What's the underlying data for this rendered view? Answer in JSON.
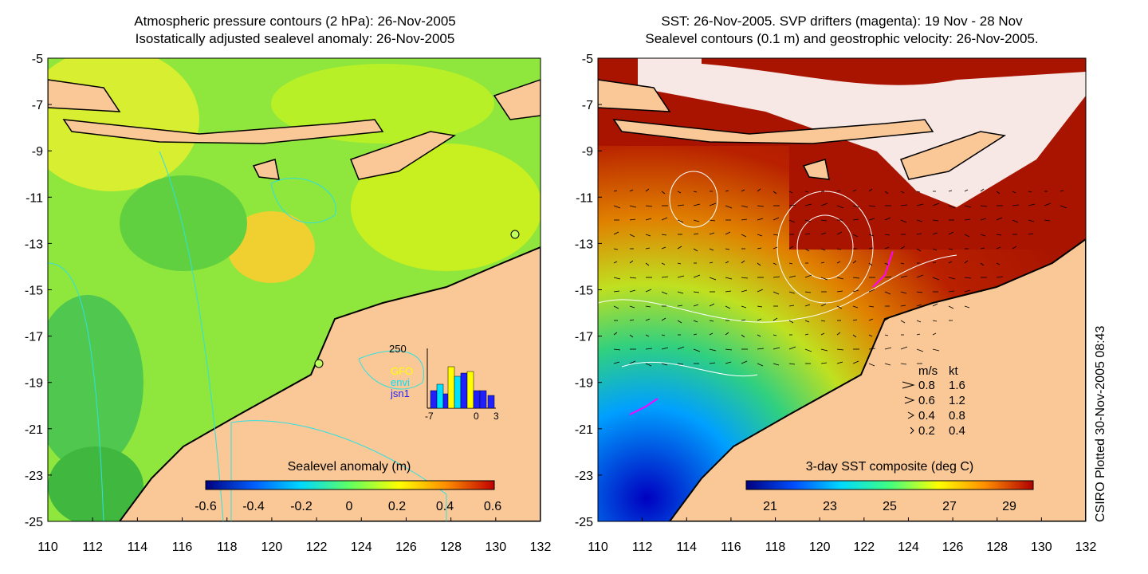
{
  "left_panel": {
    "title_line1": "Atmospheric pressure contours (2 hPa): 26-Nov-2005",
    "title_line2": "Isostatically adjusted sealevel anomaly: 26-Nov-2005",
    "colorbar_label": "Sealevel anomaly (m)",
    "colorbar_ticks": [
      "-0.6",
      "-0.4",
      "-0.2",
      "0",
      "0.2",
      "0.4",
      "0.6"
    ],
    "inset": {
      "y_label": "250",
      "legend": [
        {
          "label": "GFO",
          "color": "#ffff00"
        },
        {
          "label": "envi",
          "color": "#00e0ff"
        },
        {
          "label": "jsn1",
          "color": "#2020ff"
        }
      ],
      "x_ticks": [
        "-7",
        "0",
        "3"
      ]
    },
    "colorbar_colors": [
      "#00007f",
      "#0060ff",
      "#00d8ff",
      "#60ff60",
      "#ffff00",
      "#ff9000",
      "#c00000"
    ]
  },
  "right_panel": {
    "title_line1": "SST: 26-Nov-2005. SVP drifters (magenta): 19 Nov - 28 Nov",
    "title_line2": "Sealevel contours (0.1 m) and geostrophic velocity: 26-Nov-2005.",
    "colorbar_label": "3-day SST composite (deg C)",
    "colorbar_ticks": [
      "21",
      "23",
      "25",
      "27",
      "29"
    ],
    "velocity_legend": {
      "header_ms": "m/s",
      "header_kt": "kt",
      "rows": [
        {
          "ms": "0.8",
          "kt": "1.6"
        },
        {
          "ms": "0.6",
          "kt": "1.2"
        },
        {
          "ms": "0.4",
          "kt": "0.8"
        },
        {
          "ms": "0.2",
          "kt": "0.4"
        }
      ]
    },
    "colorbar_colors": [
      "#00007f",
      "#0050ff",
      "#00d8ff",
      "#40ff80",
      "#ffff00",
      "#ff9000",
      "#b00000"
    ]
  },
  "axes": {
    "y_ticks": [
      "-5",
      "-7",
      "-9",
      "-11",
      "-13",
      "-15",
      "-17",
      "-19",
      "-21",
      "-23",
      "-25"
    ],
    "x_ticks": [
      "110",
      "112",
      "114",
      "116",
      "118",
      "120",
      "122",
      "124",
      "126",
      "128",
      "130",
      "132"
    ]
  },
  "side_note": "CSIRO Plotted 30-Nov-2005 08:43",
  "colors": {
    "land": "#fac896",
    "sea_green": "#8fe63c",
    "sst_red": "#a81400"
  }
}
